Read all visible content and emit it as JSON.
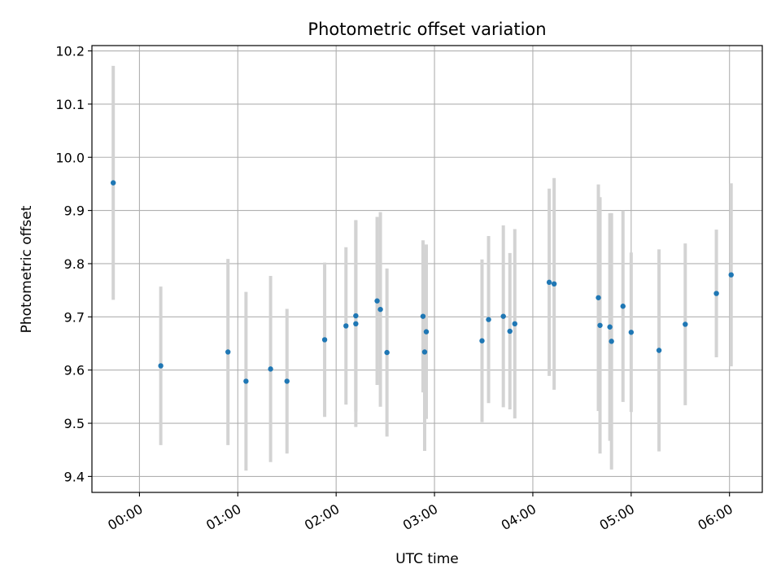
{
  "chart_data": {
    "type": "scatter",
    "title": "Photometric offset variation",
    "xlabel": "UTC time",
    "ylabel": "Photometric offset",
    "grid": true,
    "legend": "none",
    "x_unit": "UTC time (HH:MM)",
    "xlim": [
      "-00:29",
      "06:20"
    ],
    "ylim": [
      9.37,
      10.21
    ],
    "xticks": [
      "00:00",
      "01:00",
      "02:00",
      "03:00",
      "04:00",
      "05:00",
      "06:00"
    ],
    "yticks": [
      "9.4",
      "9.5",
      "9.6",
      "9.7",
      "9.8",
      "9.9",
      "10.0",
      "10.1",
      "10.2"
    ],
    "marker_color": "#1f77b4",
    "errorbar_color": "#d3d3d3",
    "series": [
      {
        "points": [
          {
            "x": "-00:16",
            "y": 9.952,
            "yerr": 0.22
          },
          {
            "x": "00:13",
            "y": 9.608,
            "yerr": 0.149
          },
          {
            "x": "00:54",
            "y": 9.634,
            "yerr": 0.175
          },
          {
            "x": "01:05",
            "y": 9.579,
            "yerr": 0.168
          },
          {
            "x": "01:20",
            "y": 9.602,
            "yerr": 0.175
          },
          {
            "x": "01:30",
            "y": 9.579,
            "yerr": 0.136
          },
          {
            "x": "01:53",
            "y": 9.657,
            "yerr": 0.145
          },
          {
            "x": "02:06",
            "y": 9.683,
            "yerr": 0.148
          },
          {
            "x": "02:12",
            "y": 9.702,
            "yerr": 0.18
          },
          {
            "x": "02:12",
            "y": 9.687,
            "yerr": 0.194
          },
          {
            "x": "02:25",
            "y": 9.73,
            "yerr": 0.158
          },
          {
            "x": "02:27",
            "y": 9.714,
            "yerr": 0.183
          },
          {
            "x": "02:31",
            "y": 9.633,
            "yerr": 0.158
          },
          {
            "x": "02:53",
            "y": 9.701,
            "yerr": 0.143
          },
          {
            "x": "02:54",
            "y": 9.634,
            "yerr": 0.186
          },
          {
            "x": "02:55",
            "y": 9.672,
            "yerr": 0.164
          },
          {
            "x": "03:29",
            "y": 9.655,
            "yerr": 0.153
          },
          {
            "x": "03:33",
            "y": 9.695,
            "yerr": 0.157
          },
          {
            "x": "03:42",
            "y": 9.701,
            "yerr": 0.171
          },
          {
            "x": "03:46",
            "y": 9.673,
            "yerr": 0.147
          },
          {
            "x": "03:49",
            "y": 9.687,
            "yerr": 0.178
          },
          {
            "x": "04:10",
            "y": 9.765,
            "yerr": 0.176
          },
          {
            "x": "04:13",
            "y": 9.762,
            "yerr": 0.199
          },
          {
            "x": "04:40",
            "y": 9.736,
            "yerr": 0.213
          },
          {
            "x": "04:41",
            "y": 9.684,
            "yerr": 0.241
          },
          {
            "x": "04:47",
            "y": 9.681,
            "yerr": 0.214
          },
          {
            "x": "04:48",
            "y": 9.654,
            "yerr": 0.241
          },
          {
            "x": "04:55",
            "y": 9.72,
            "yerr": 0.18
          },
          {
            "x": "05:00",
            "y": 9.671,
            "yerr": 0.15
          },
          {
            "x": "05:17",
            "y": 9.637,
            "yerr": 0.19
          },
          {
            "x": "05:33",
            "y": 9.686,
            "yerr": 0.152
          },
          {
            "x": "05:52",
            "y": 9.744,
            "yerr": 0.12
          },
          {
            "x": "06:01",
            "y": 9.779,
            "yerr": 0.172
          }
        ]
      }
    ]
  }
}
